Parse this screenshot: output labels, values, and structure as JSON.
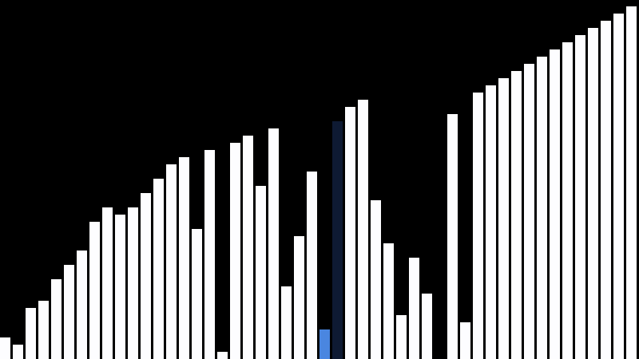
{
  "visualizer": {
    "colors": {
      "background": "#000000",
      "bar": "#fdfdff",
      "active_bar": "#4a86e0",
      "compare_bar": "#0e1a33"
    },
    "active_index": 25,
    "compare_index": 26,
    "bar_values": [
      27,
      18,
      64,
      73,
      100,
      118,
      136,
      172,
      190,
      181,
      190,
      208,
      226,
      244,
      253,
      163,
      262,
      9,
      271,
      280,
      217,
      289,
      91,
      154,
      235,
      37,
      298,
      316,
      325,
      199,
      145,
      55,
      127,
      82,
      0,
      307,
      46,
      334,
      343,
      352,
      361,
      370,
      379,
      388,
      397,
      406,
      415,
      424,
      433,
      442
    ],
    "max_value": 450
  }
}
